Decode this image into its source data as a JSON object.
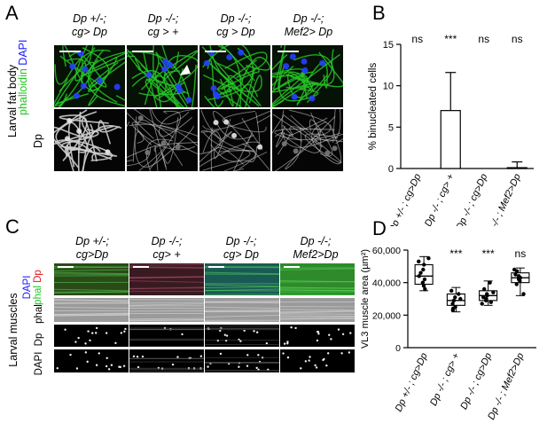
{
  "panelA": {
    "letter": "A",
    "columns": [
      "Dp +/-;\ncg> Dp",
      "Dp -/-;\ncg > +",
      "Dp -/-;\ncg > Dp",
      "Dp -/-;\nMef2> Dp"
    ],
    "side_label": "Larval fat body",
    "row_labels": {
      "stain_phalloidin": "phalloidin",
      "stain_dapi": "DAPI",
      "dp": "Dp"
    }
  },
  "panelB": {
    "letter": "B",
    "chart_data": {
      "type": "bar",
      "ylabel": "% binucleated cells",
      "ylim": [
        0,
        15
      ],
      "yticks": [
        0,
        5,
        10,
        15
      ],
      "categories": [
        "Dp +/- ; cg>Dp",
        "Dp -/- ; cg> +",
        "Dp -/- ; cg>Dp",
        "Dp -/- ; Mef2>Dp"
      ],
      "values": [
        0,
        7.0,
        0,
        0.1
      ],
      "error_upper": [
        0,
        11.6,
        0,
        0.8
      ],
      "significance": [
        "ns",
        "***",
        "ns",
        "ns"
      ]
    }
  },
  "panelC": {
    "letter": "C",
    "columns": [
      "Dp +/-;\ncg>Dp",
      "Dp -/-;\ncg> +",
      "Dp -/-;\ncg> Dp",
      "Dp -/-;\nMef2>Dp"
    ],
    "side_label": "Larval muscles",
    "merge_label": {
      "dapi": "DAPI",
      "phal": "phal",
      "dp": "Dp"
    },
    "row_labels": [
      "phal",
      "Dp",
      "DAPI"
    ]
  },
  "panelD": {
    "letter": "D",
    "chart_data": {
      "type": "box",
      "ylabel": "VL3 muscle area (µm²)",
      "ylim": [
        0,
        60000
      ],
      "yticks": [
        0,
        20000,
        40000,
        60000
      ],
      "ytick_labels": [
        "0",
        "20,000",
        "40,000",
        "60,000"
      ],
      "categories": [
        "Dp +/- ; cg>Dp",
        "Dp -/- ; cg> +",
        "Dp -/- ; cg>Dp",
        "Dp -/- ; Mef2>Dp"
      ],
      "boxes": [
        {
          "min": 35000,
          "q1": 39000,
          "median": 44000,
          "q3": 51000,
          "max": 56000
        },
        {
          "min": 22000,
          "q1": 26000,
          "median": 29000,
          "q3": 33000,
          "max": 37000
        },
        {
          "min": 26000,
          "q1": 29000,
          "median": 32000,
          "q3": 35000,
          "max": 41000
        },
        {
          "min": 32000,
          "q1": 40000,
          "median": 43000,
          "q3": 46000,
          "max": 49000
        }
      ],
      "points": [
        [
          38000,
          42000,
          44000,
          46000,
          48000,
          51000,
          53000,
          55000,
          36000,
          40000
        ],
        [
          23000,
          25000,
          27000,
          29000,
          31000,
          33000,
          35000,
          24000,
          30000
        ],
        [
          27000,
          29000,
          30000,
          32000,
          33000,
          34000,
          36000,
          40000,
          31000,
          28000
        ],
        [
          33000,
          39000,
          41000,
          43000,
          44000,
          45000,
          47000,
          48000,
          42000
        ]
      ],
      "significance": [
        "",
        "***",
        "***",
        "ns"
      ]
    }
  },
  "colors": {
    "phalloidin": "#22c422",
    "dapi": "#1a1aff",
    "dp": "#e01818",
    "ns_black": "#000000"
  }
}
